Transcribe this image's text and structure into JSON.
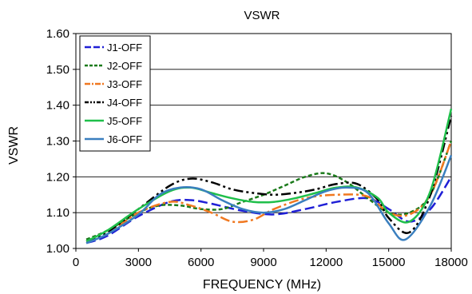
{
  "chart_data": {
    "type": "line",
    "title": "VSWR",
    "xlabel": "FREQUENCY (MHz)",
    "ylabel": "VSWR",
    "xlim": [
      0,
      18000
    ],
    "ylim": [
      1.0,
      1.6
    ],
    "xticks": [
      0,
      3000,
      6000,
      9000,
      12000,
      15000,
      18000
    ],
    "yticks": [
      1.0,
      1.1,
      1.2,
      1.3,
      1.4,
      1.5,
      1.6
    ],
    "xtick_labels": [
      "0",
      "3000",
      "6000",
      "9000",
      "12000",
      "15000",
      "18000"
    ],
    "ytick_labels": [
      "1.00",
      "1.10",
      "1.20",
      "1.30",
      "1.40",
      "1.50",
      "1.60"
    ],
    "grid": "horizontal",
    "legend_position": "top-left",
    "series": [
      {
        "name": "J1-OFF",
        "color": "#1f1fd6",
        "dash": "long-dash",
        "x": [
          500,
          1500,
          3000,
          4500,
          5500,
          6500,
          8000,
          9500,
          11000,
          12500,
          14000,
          15000,
          16000,
          17000,
          18000
        ],
        "y": [
          1.015,
          1.035,
          1.09,
          1.13,
          1.135,
          1.125,
          1.105,
          1.095,
          1.11,
          1.13,
          1.14,
          1.11,
          1.075,
          1.11,
          1.2
        ]
      },
      {
        "name": "J2-OFF",
        "color": "#1a7a1a",
        "dash": "short-dash",
        "x": [
          500,
          1500,
          3000,
          4000,
          5000,
          6000,
          7000,
          8000,
          9000,
          10000,
          11000,
          12000,
          13000,
          14000,
          15000,
          16000,
          17000,
          18000
        ],
        "y": [
          1.025,
          1.05,
          1.1,
          1.12,
          1.12,
          1.11,
          1.11,
          1.13,
          1.15,
          1.175,
          1.2,
          1.21,
          1.185,
          1.14,
          1.1,
          1.1,
          1.15,
          1.3
        ]
      },
      {
        "name": "J3-OFF",
        "color": "#f07820",
        "dash": "dash-dot",
        "x": [
          500,
          1500,
          3000,
          4500,
          5500,
          6500,
          7500,
          8500,
          9500,
          11000,
          12500,
          14000,
          15000,
          16000,
          17000,
          18000
        ],
        "y": [
          1.02,
          1.04,
          1.1,
          1.13,
          1.12,
          1.1,
          1.075,
          1.08,
          1.11,
          1.14,
          1.15,
          1.145,
          1.1,
          1.095,
          1.15,
          1.3
        ]
      },
      {
        "name": "J4-OFF",
        "color": "#000000",
        "dash": "dash-dot-dot",
        "x": [
          500,
          1500,
          3000,
          4500,
          5500,
          6500,
          7500,
          8500,
          9500,
          10500,
          11500,
          12500,
          13500,
          14500,
          15000,
          16000,
          17000,
          18000
        ],
        "y": [
          1.02,
          1.045,
          1.11,
          1.175,
          1.195,
          1.185,
          1.165,
          1.155,
          1.15,
          1.155,
          1.165,
          1.18,
          1.18,
          1.135,
          1.085,
          1.045,
          1.15,
          1.37
        ]
      },
      {
        "name": "J5-OFF",
        "color": "#1fbf4a",
        "dash": "solid",
        "x": [
          500,
          1500,
          3000,
          4500,
          5500,
          6500,
          7500,
          8500,
          9500,
          10500,
          11500,
          12500,
          13500,
          14500,
          15000,
          16000,
          17000,
          18000
        ],
        "y": [
          1.02,
          1.05,
          1.11,
          1.16,
          1.17,
          1.155,
          1.14,
          1.13,
          1.13,
          1.14,
          1.155,
          1.17,
          1.17,
          1.14,
          1.1,
          1.075,
          1.16,
          1.39
        ]
      },
      {
        "name": "J6-OFF",
        "color": "#3a7fbf",
        "dash": "solid",
        "x": [
          500,
          1500,
          3000,
          4000,
          5000,
          6000,
          7000,
          8000,
          9000,
          10000,
          11000,
          12000,
          13000,
          14000,
          15000,
          15800,
          17000,
          18000
        ],
        "y": [
          1.015,
          1.04,
          1.095,
          1.15,
          1.17,
          1.165,
          1.135,
          1.11,
          1.1,
          1.11,
          1.135,
          1.16,
          1.17,
          1.155,
          1.07,
          1.025,
          1.12,
          1.26
        ]
      }
    ]
  }
}
